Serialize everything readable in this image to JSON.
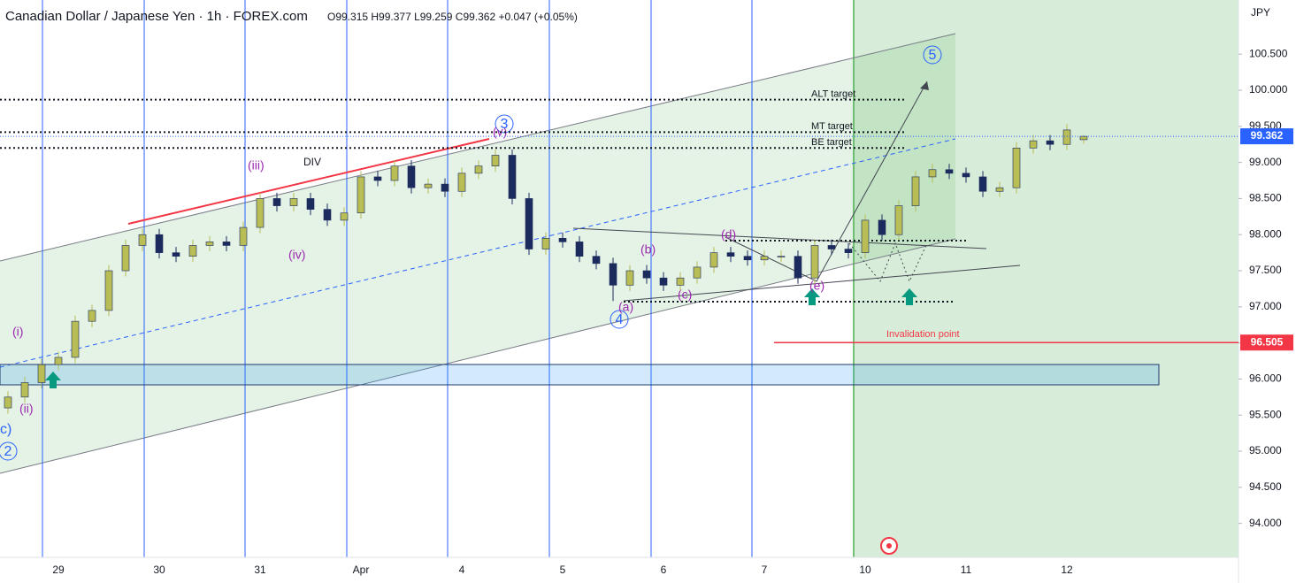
{
  "chart_data": {
    "type": "candlestick",
    "title": "Canadian Dollar / Japanese Yen · 1h · FOREX.com",
    "ohlc_legend": "O99.315 H99.377 L99.259 C99.362 +0.047 (+0.05%)",
    "currency": "JPY",
    "categories": [
      null,
      null,
      null,
      "29",
      null,
      null,
      null,
      null,
      null,
      "30",
      null,
      null,
      null,
      null,
      null,
      "31",
      null,
      null,
      null,
      null,
      null,
      "Apr",
      null,
      null,
      null,
      null,
      null,
      "4",
      null,
      null,
      null,
      null,
      null,
      "5",
      null,
      null,
      null,
      null,
      null,
      "6",
      null,
      null,
      null,
      null,
      null,
      "7",
      null,
      null,
      null,
      null,
      null,
      "10",
      null,
      null,
      null,
      null,
      null,
      "11",
      null,
      null,
      null,
      null,
      null,
      "12",
      null
    ],
    "open": [
      95.6,
      95.75,
      95.95,
      96.2,
      96.3,
      96.8,
      96.95,
      97.5,
      97.85,
      98.0,
      97.75,
      97.7,
      97.85,
      97.9,
      97.85,
      98.1,
      98.5,
      98.4,
      98.5,
      98.35,
      98.2,
      98.3,
      98.8,
      98.75,
      98.95,
      98.65,
      98.7,
      98.6,
      98.85,
      98.95,
      99.1,
      98.5,
      97.8,
      97.95,
      97.9,
      97.7,
      97.6,
      97.3,
      97.5,
      97.4,
      97.3,
      97.4,
      97.55,
      97.75,
      97.7,
      97.65,
      97.7,
      97.7,
      97.4,
      97.85,
      97.8,
      97.75,
      98.2,
      98.0,
      98.4,
      98.8,
      98.9,
      98.85,
      98.8,
      98.6,
      98.65,
      99.2,
      99.3,
      99.25,
      99.315
    ],
    "high": [
      95.83,
      96.03,
      96.28,
      96.38,
      96.88,
      97.03,
      97.58,
      97.93,
      98.08,
      98.08,
      97.83,
      97.93,
      97.98,
      97.98,
      98.18,
      98.58,
      98.58,
      98.58,
      98.58,
      98.43,
      98.38,
      98.88,
      98.88,
      99.03,
      99.03,
      98.78,
      98.78,
      98.93,
      99.03,
      99.18,
      99.18,
      98.58,
      98.03,
      98.03,
      97.98,
      97.78,
      97.68,
      97.58,
      97.58,
      97.48,
      97.48,
      97.63,
      97.83,
      97.83,
      97.78,
      97.78,
      97.78,
      97.78,
      97.93,
      97.93,
      97.88,
      98.28,
      98.28,
      98.48,
      98.88,
      98.98,
      98.98,
      98.93,
      98.88,
      98.73,
      99.28,
      99.38,
      99.38,
      99.53,
      99.377
    ],
    "low": [
      95.52,
      95.67,
      95.87,
      96.12,
      96.22,
      96.72,
      96.87,
      97.42,
      97.77,
      97.67,
      97.62,
      97.62,
      97.77,
      97.77,
      97.77,
      98.02,
      98.32,
      98.32,
      98.27,
      98.12,
      98.12,
      98.22,
      98.67,
      98.67,
      98.57,
      98.57,
      98.52,
      98.52,
      98.77,
      98.87,
      98.42,
      97.72,
      97.72,
      97.82,
      97.62,
      97.52,
      97.08,
      97.22,
      97.32,
      97.22,
      97.22,
      97.32,
      97.47,
      97.62,
      97.57,
      97.57,
      97.62,
      97.32,
      97.32,
      97.72,
      97.67,
      97.67,
      97.92,
      97.92,
      98.32,
      98.72,
      98.77,
      98.72,
      98.52,
      98.52,
      98.57,
      99.12,
      99.17,
      99.17,
      99.259
    ],
    "close": [
      95.75,
      95.95,
      96.2,
      96.3,
      96.8,
      96.95,
      97.5,
      97.85,
      98.0,
      97.75,
      97.7,
      97.85,
      97.9,
      97.85,
      98.1,
      98.5,
      98.4,
      98.5,
      98.35,
      98.2,
      98.3,
      98.8,
      98.75,
      98.95,
      98.65,
      98.7,
      98.6,
      98.85,
      98.95,
      99.1,
      98.5,
      97.8,
      97.95,
      97.9,
      97.7,
      97.6,
      97.3,
      97.5,
      97.4,
      97.3,
      97.4,
      97.55,
      97.75,
      97.7,
      97.65,
      97.7,
      97.7,
      97.4,
      97.85,
      97.8,
      97.75,
      98.2,
      98.0,
      98.4,
      98.8,
      98.9,
      98.85,
      98.8,
      98.6,
      98.65,
      99.2,
      99.3,
      99.25,
      99.45,
      99.362
    ],
    "up_color": "#b9bd55",
    "down_color": "#1c2b5e",
    "ylim": [
      93.53,
      101.25
    ],
    "yticks": [
      {
        "value": 94.0,
        "label": "94.000"
      },
      {
        "value": 94.5,
        "label": "94.500"
      },
      {
        "value": 95.0,
        "label": "95.000"
      },
      {
        "value": 95.5,
        "label": "95.500"
      },
      {
        "value": 96.0,
        "label": "96.000"
      },
      {
        "value": 96.5,
        "label": "96.500"
      },
      {
        "value": 97.0,
        "label": "97.000"
      },
      {
        "value": 97.5,
        "label": "97.500"
      },
      {
        "value": 98.0,
        "label": "98.000"
      },
      {
        "value": 98.5,
        "label": "98.500"
      },
      {
        "value": 99.0,
        "label": "99.000"
      },
      {
        "value": 99.5,
        "label": "99.500"
      },
      {
        "value": 100.0,
        "label": "100.000"
      },
      {
        "value": 100.5,
        "label": "100.500"
      }
    ],
    "levels": [
      {
        "name": "ALT target",
        "value": 99.87,
        "color": "#131722"
      },
      {
        "name": "MT target",
        "value": 99.42,
        "color": "#131722"
      },
      {
        "name": "BE target",
        "value": 99.2,
        "color": "#131722"
      },
      {
        "name": "Invalidation point",
        "value": 96.505,
        "color": "#f23645"
      }
    ],
    "annotations": [
      "(i)",
      "(ii)",
      "(iii)",
      "(iv)",
      "(v)",
      "DIV",
      "(a)",
      "(b)",
      "(c)",
      "(d)",
      "(e)",
      "2",
      "3",
      "4",
      "5",
      "c)"
    ]
  }
}
